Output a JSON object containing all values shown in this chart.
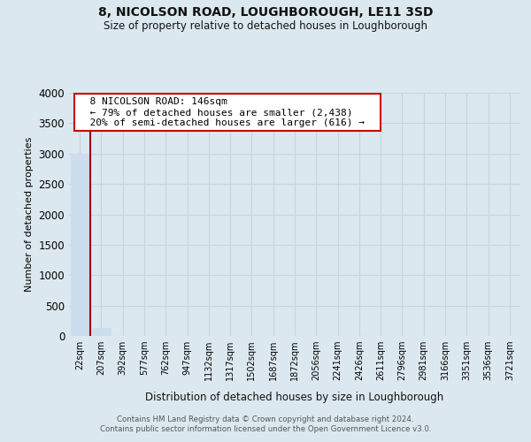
{
  "title": "8, NICOLSON ROAD, LOUGHBOROUGH, LE11 3SD",
  "subtitle": "Size of property relative to detached houses in Loughborough",
  "xlabel": "Distribution of detached houses by size in Loughborough",
  "ylabel": "Number of detached properties",
  "bar_labels": [
    "22sqm",
    "207sqm",
    "392sqm",
    "577sqm",
    "762sqm",
    "947sqm",
    "1132sqm",
    "1317sqm",
    "1502sqm",
    "1687sqm",
    "1872sqm",
    "2056sqm",
    "2241sqm",
    "2426sqm",
    "2611sqm",
    "2796sqm",
    "2981sqm",
    "3166sqm",
    "3351sqm",
    "3536sqm",
    "3721sqm"
  ],
  "bar_values": [
    3000,
    135,
    0,
    0,
    0,
    0,
    0,
    0,
    0,
    0,
    0,
    0,
    0,
    0,
    0,
    0,
    0,
    0,
    0,
    0,
    0
  ],
  "bar_color": "#ccdded",
  "ylim": [
    0,
    4000
  ],
  "yticks": [
    0,
    500,
    1000,
    1500,
    2000,
    2500,
    3000,
    3500,
    4000
  ],
  "property_line_color": "#990000",
  "annotation_title": "8 NICOLSON ROAD: 146sqm",
  "annotation_line1": "← 79% of detached houses are smaller (2,438)",
  "annotation_line2": "20% of semi-detached houses are larger (616) →",
  "annotation_box_facecolor": "#ffffff",
  "annotation_box_edgecolor": "#cc0000",
  "grid_color": "#c8d4de",
  "background_color": "#dce8f0",
  "footer_line1": "Contains HM Land Registry data © Crown copyright and database right 2024.",
  "footer_line2": "Contains public sector information licensed under the Open Government Licence v3.0."
}
